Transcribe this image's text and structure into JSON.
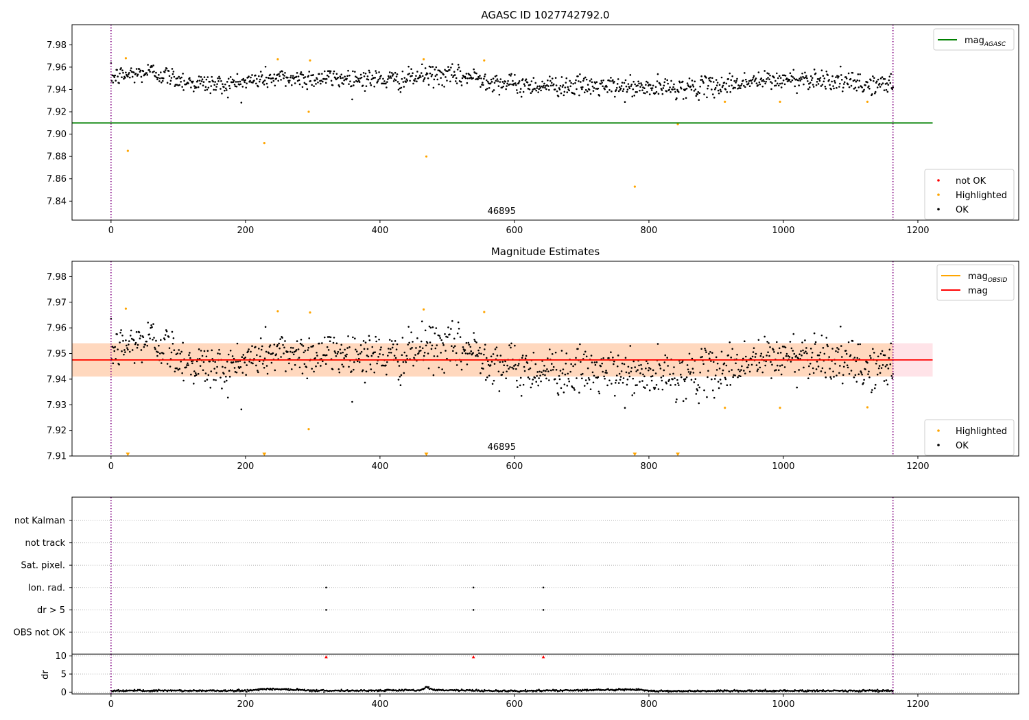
{
  "chart_data": [
    {
      "id": "agasc",
      "type": "scatter",
      "title": "AGASC ID 1027742792.0",
      "xlim": [
        -58,
        1350
      ],
      "ylim": [
        7.823,
        7.998
      ],
      "xticks": [
        0,
        200,
        400,
        600,
        800,
        1000,
        1200
      ],
      "yticks": [
        7.84,
        7.86,
        7.88,
        7.9,
        7.92,
        7.94,
        7.96,
        7.98
      ],
      "ytick_format": 2,
      "vlines": [
        0,
        1163
      ],
      "obsid_label": {
        "text": "46895",
        "x": 581
      },
      "hline": {
        "name": "mag",
        "subscript": "AGASC",
        "value": 7.91,
        "x_end": 1222,
        "color": "#008000"
      },
      "ok_trend": {
        "n": 1165,
        "knots": [
          [
            0,
            7.951
          ],
          [
            60,
            7.956
          ],
          [
            120,
            7.946
          ],
          [
            170,
            7.944
          ],
          [
            230,
            7.95
          ],
          [
            300,
            7.95
          ],
          [
            370,
            7.95
          ],
          [
            430,
            7.948
          ],
          [
            470,
            7.953
          ],
          [
            540,
            7.951
          ],
          [
            600,
            7.944
          ],
          [
            700,
            7.943
          ],
          [
            800,
            7.941
          ],
          [
            880,
            7.942
          ],
          [
            950,
            7.947
          ],
          [
            1050,
            7.95
          ],
          [
            1120,
            7.944
          ],
          [
            1163,
            7.945
          ]
        ],
        "noise": 0.0045
      },
      "highlighted": {
        "name": "Highlighted",
        "color": "#ffa500",
        "points": [
          [
            22,
            7.968
          ],
          [
            25,
            7.885
          ],
          [
            228,
            7.892
          ],
          [
            248,
            7.967
          ],
          [
            294,
            7.92
          ],
          [
            296,
            7.966
          ],
          [
            465,
            7.967
          ],
          [
            469,
            7.88
          ],
          [
            555,
            7.966
          ],
          [
            779,
            7.853
          ],
          [
            843,
            7.909
          ],
          [
            913,
            7.929
          ],
          [
            995,
            7.929
          ],
          [
            1125,
            7.929
          ]
        ]
      },
      "not_ok": {
        "name": "not OK",
        "color": "#ff0000",
        "points": []
      },
      "ok_label": "OK",
      "legends": [
        {
          "position": "top-right",
          "entries": [
            {
              "kind": "line",
              "color": "#008000",
              "label": "mag",
              "sub": "AGASC"
            }
          ]
        },
        {
          "position": "bottom-right",
          "entries": [
            {
              "kind": "dot",
              "color": "#ff0000",
              "label": "not OK"
            },
            {
              "kind": "dot",
              "color": "#ffa500",
              "label": "Highlighted"
            },
            {
              "kind": "dot",
              "color": "#000000",
              "label": "OK"
            }
          ]
        }
      ]
    },
    {
      "id": "estimates",
      "type": "scatter",
      "title": "Magnitude Estimates",
      "xlim": [
        -58,
        1350
      ],
      "ylim": [
        7.91,
        7.986
      ],
      "xticks": [
        0,
        200,
        400,
        600,
        800,
        1000,
        1200
      ],
      "yticks": [
        7.91,
        7.92,
        7.93,
        7.94,
        7.95,
        7.96,
        7.97,
        7.98
      ],
      "ytick_format": 2,
      "vlines": [
        0,
        1163
      ],
      "obsid_label": {
        "text": "46895",
        "x": 581
      },
      "mag_line": {
        "name": "mag",
        "value": 7.9475,
        "x_end": 1222,
        "color": "#ff0000"
      },
      "mag_band": [
        7.941,
        7.954
      ],
      "obsid_line": {
        "name": "mag",
        "subscript": "OBSID",
        "value": 7.9475,
        "x_end": 1163,
        "color": "#ffa500"
      },
      "ok_trend": {
        "n": 1165,
        "knots": [
          [
            0,
            7.951
          ],
          [
            60,
            7.956
          ],
          [
            120,
            7.946
          ],
          [
            170,
            7.944
          ],
          [
            230,
            7.95
          ],
          [
            300,
            7.95
          ],
          [
            370,
            7.95
          ],
          [
            430,
            7.948
          ],
          [
            470,
            7.953
          ],
          [
            540,
            7.951
          ],
          [
            600,
            7.944
          ],
          [
            700,
            7.943
          ],
          [
            800,
            7.941
          ],
          [
            880,
            7.942
          ],
          [
            950,
            7.947
          ],
          [
            1050,
            7.95
          ],
          [
            1120,
            7.944
          ],
          [
            1163,
            7.945
          ]
        ],
        "noise": 0.0045
      },
      "highlighted": {
        "name": "Highlighted",
        "color": "#ffa500",
        "points": [
          [
            22,
            7.9675
          ],
          [
            248,
            7.9665
          ],
          [
            294,
            7.9205
          ],
          [
            296,
            7.966
          ],
          [
            465,
            7.9672
          ],
          [
            555,
            7.9662
          ],
          [
            913,
            7.9288
          ],
          [
            995,
            7.9288
          ],
          [
            1125,
            7.929
          ]
        ]
      },
      "clipped_markers": {
        "color": "#ffa500",
        "x": [
          25,
          228,
          469,
          779,
          843
        ]
      },
      "ok_label": "OK",
      "legends": [
        {
          "position": "top-right",
          "entries": [
            {
              "kind": "line",
              "color": "#ffa500",
              "label": "mag",
              "sub": "OBSID"
            },
            {
              "kind": "line",
              "color": "#ff0000",
              "label": "mag"
            }
          ]
        },
        {
          "position": "bottom-right",
          "entries": [
            {
              "kind": "dot",
              "color": "#ffa500",
              "label": "Highlighted"
            },
            {
              "kind": "dot",
              "color": "#000000",
              "label": "OK"
            }
          ]
        }
      ]
    },
    {
      "id": "flags",
      "type": "scatter",
      "xlim": [
        -58,
        1350
      ],
      "vlines": [
        0,
        1163
      ],
      "categories": [
        "not Kalman",
        "not track",
        "Sat. pixel.",
        "Ion. rad.",
        "dr > 5",
        "OBS not OK"
      ],
      "flag_points": [
        {
          "category": "Ion. rad.",
          "x": [
            320,
            539,
            643
          ]
        },
        {
          "category": "dr > 5",
          "x": [
            320,
            539,
            643
          ]
        }
      ]
    },
    {
      "id": "dr",
      "type": "scatter",
      "ylabel": "dr",
      "xlim": [
        -58,
        1350
      ],
      "ylim": [
        -0.5,
        10.5
      ],
      "xticks": [
        0,
        200,
        400,
        600,
        800,
        1000,
        1200
      ],
      "yticks": [
        0,
        5,
        10
      ],
      "ytick_format": 0,
      "vlines": [
        0,
        1163
      ],
      "dr_trend": {
        "n": 1165,
        "knots": [
          [
            0,
            0.4
          ],
          [
            200,
            0.4
          ],
          [
            230,
            0.9
          ],
          [
            290,
            0.6
          ],
          [
            300,
            0.4
          ],
          [
            460,
            0.5
          ],
          [
            470,
            1.4
          ],
          [
            480,
            0.6
          ],
          [
            600,
            0.3
          ],
          [
            720,
            0.6
          ],
          [
            790,
            0.7
          ],
          [
            800,
            0.3
          ],
          [
            1163,
            0.4
          ]
        ],
        "noise": 0.25
      },
      "outliers": {
        "color": "#ff0000",
        "x": [
          320,
          539,
          643
        ],
        "value": 10
      }
    }
  ]
}
